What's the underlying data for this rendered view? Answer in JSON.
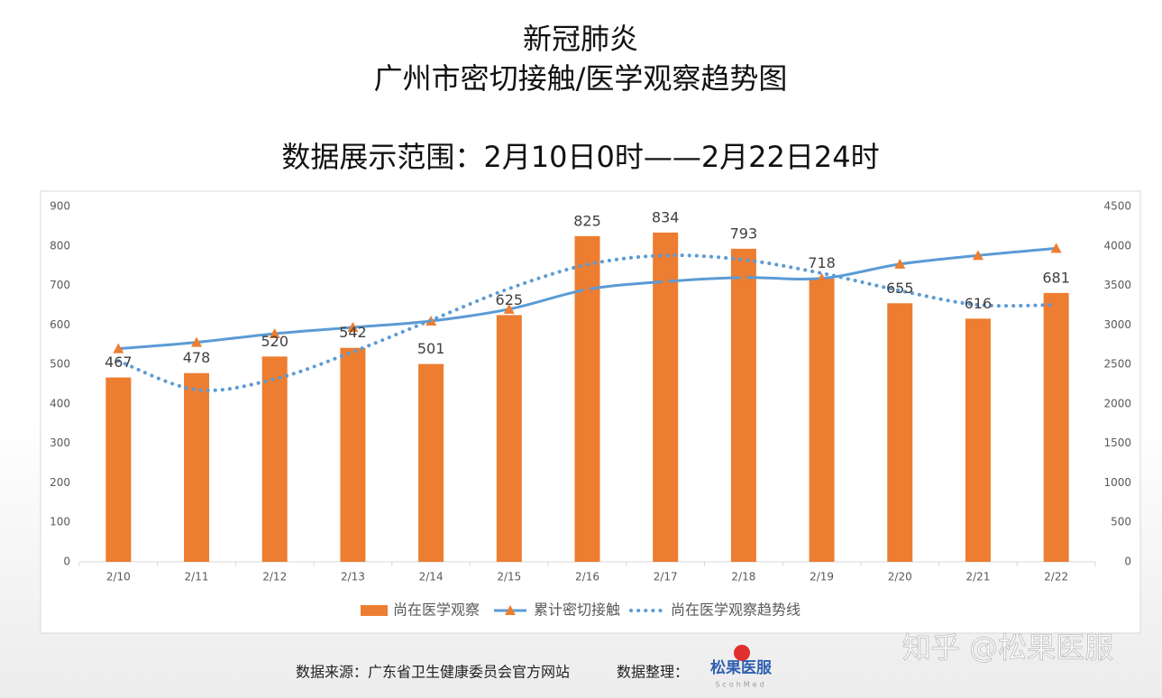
{
  "chart_data": {
    "type": "bar",
    "title": "新冠肺炎",
    "subtitle": "广州市密切接触/医学观察趋势图",
    "date_range": "数据展示范围：2月10日0时——2月22日24时",
    "categories": [
      "2/10",
      "2/11",
      "2/12",
      "2/13",
      "2/14",
      "2/15",
      "2/16",
      "2/17",
      "2/18",
      "2/19",
      "2/20",
      "2/21",
      "2/22"
    ],
    "series": [
      {
        "name": "尚在医学观察",
        "type": "bar",
        "color": "#ed7d31",
        "values": [
          467,
          478,
          520,
          542,
          501,
          625,
          825,
          834,
          793,
          718,
          655,
          616,
          681
        ]
      },
      {
        "name": "累计密切接触",
        "type": "line",
        "axis": "y2",
        "color": "#5b9bd5",
        "marker": "triangle",
        "marker_color": "#ed7d31",
        "values": [
          2700,
          2780,
          2890,
          2970,
          3050,
          3200,
          3450,
          3550,
          3600,
          3590,
          3770,
          3880,
          3970
        ]
      },
      {
        "name": "尚在医学观察趋势线",
        "type": "line",
        "style": "dotted",
        "color": "#5b9bd5",
        "values": [
          509,
          436,
          463,
          532,
          612,
          692,
          753,
          776,
          765,
          731,
          687,
          651,
          651
        ]
      }
    ],
    "ylim": [
      0,
      900
    ],
    "yticks": [
      0,
      100,
      200,
      300,
      400,
      500,
      600,
      700,
      800,
      900
    ],
    "y2lim": [
      0,
      4500
    ],
    "y2ticks": [
      0,
      500,
      1000,
      1500,
      2000,
      2500,
      3000,
      3500,
      4000,
      4500
    ],
    "grid": false,
    "legend": "bottom",
    "source": "数据来源：广东省卫生健康委员会官方网站",
    "compiler": "数据整理：",
    "logo": "松果医服",
    "logo_sub": "ScohMed",
    "watermark": "知乎 @松果医服"
  }
}
